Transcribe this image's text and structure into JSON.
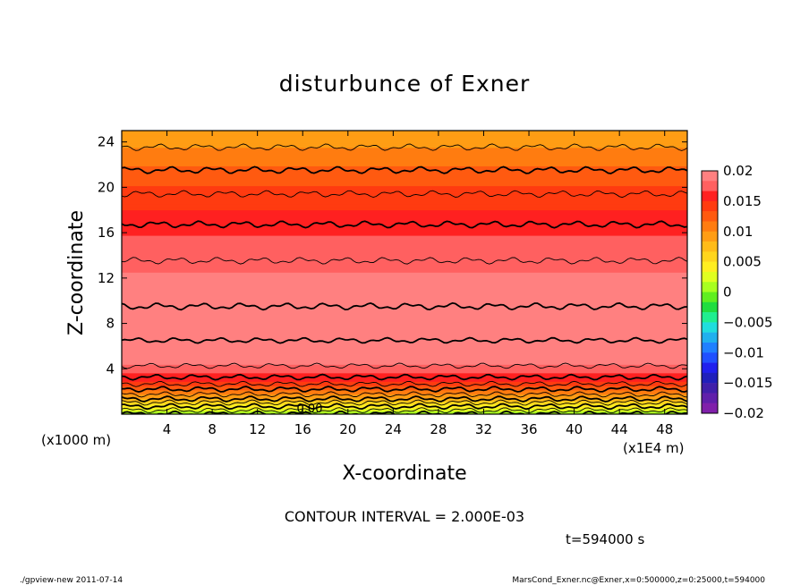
{
  "chart_data": {
    "type": "heatmap",
    "title": "disturbunce of Exner",
    "xlabel": "X-coordinate",
    "ylabel": "Z-coordinate",
    "x_unit": "(x1E4 m)",
    "y_unit": "(x1000 m)",
    "xlim": [
      0,
      50
    ],
    "ylim": [
      0,
      25
    ],
    "x_ticks": [
      4,
      8,
      12,
      16,
      20,
      24,
      28,
      32,
      36,
      40,
      44,
      48
    ],
    "y_ticks": [
      4,
      8,
      12,
      16,
      20,
      24
    ],
    "contour_label": "0.00",
    "colorbar": {
      "range": [
        -0.02,
        0.02
      ],
      "tick_values": [
        0.02,
        0.015,
        0.01,
        0.005,
        0,
        -0.005,
        -0.01,
        -0.015,
        -0.02
      ],
      "tick_labels": [
        "0.02",
        "0.015",
        "0.01",
        "0.005",
        "0",
        "−0.005",
        "−0.01",
        "−0.015",
        "−0.02"
      ],
      "colors_top_to_bottom": [
        "#ff8080",
        "#ff6060",
        "#ff2020",
        "#ff3b10",
        "#ff5a10",
        "#ff7c10",
        "#ff9d14",
        "#ffbb18",
        "#ffd51c",
        "#ffee20",
        "#e0ff20",
        "#a8ff20",
        "#60ee20",
        "#20dd40",
        "#20ee90",
        "#20dddd",
        "#20b0ee",
        "#2080ff",
        "#2050ff",
        "#2020ee",
        "#2020bb",
        "#4020aa",
        "#6020aa",
        "#8020aa"
      ]
    },
    "field_profile_by_height": {
      "z_km": [
        0,
        1.5,
        3,
        4.5,
        6,
        7,
        8,
        9,
        10,
        11,
        12,
        13,
        14,
        15,
        16,
        17,
        18,
        19,
        20,
        21,
        22,
        23,
        24,
        25
      ],
      "value": [
        0.0,
        0.009,
        0.0155,
        0.0185,
        0.0195,
        0.0205,
        0.021,
        0.0205,
        0.0195,
        0.019,
        0.0185,
        0.0182,
        0.0178,
        0.0172,
        0.0165,
        0.0158,
        0.015,
        0.0143,
        0.0135,
        0.0125,
        0.0115,
        0.0105,
        0.0095,
        0.009
      ]
    },
    "contour_interval_text": "CONTOUR INTERVAL = 2.000E-03"
  },
  "annotations": {
    "time": "t=594000 s",
    "program": "./gpview-new  2011-07-14",
    "source": "MarsCond_Exner.nc@Exner,x=0:500000,z=0:25000,t=594000"
  }
}
